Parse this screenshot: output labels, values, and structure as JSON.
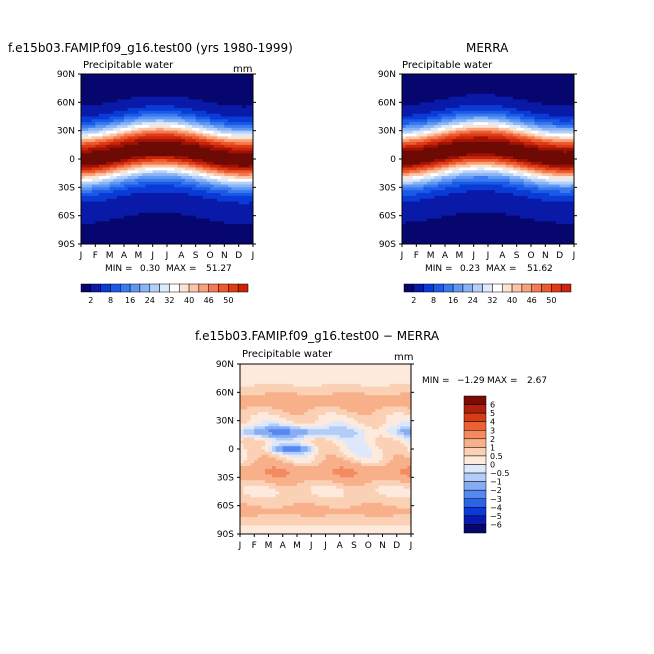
{
  "chart_data": [
    {
      "type": "heatmap",
      "title": "f.e15b03.FAMIP.f09_g16.test00 (yrs 1980-1999)",
      "subtitle": "Precipitable water",
      "units": "mm",
      "x_ticks": [
        "J",
        "F",
        "M",
        "A",
        "M",
        "J",
        "J",
        "A",
        "S",
        "O",
        "N",
        "D",
        "J"
      ],
      "y_ticks": [
        "90N",
        "60N",
        "30N",
        "0",
        "30S",
        "60S",
        "90S"
      ],
      "min_label": "MIN =",
      "min_value": "0.30",
      "max_label": "MAX =",
      "max_value": "51.27",
      "colorbar_labels": [
        "2",
        "8",
        "16",
        "24",
        "32",
        "40",
        "46",
        "50"
      ],
      "field": "climatology",
      "peak_lat": 8
    },
    {
      "type": "heatmap",
      "title": "MERRA",
      "subtitle": "Precipitable water",
      "units": "mm",
      "x_ticks": [
        "J",
        "F",
        "M",
        "A",
        "M",
        "J",
        "J",
        "A",
        "S",
        "O",
        "N",
        "D",
        "J"
      ],
      "y_ticks": [
        "90N",
        "60N",
        "30N",
        "0",
        "30S",
        "60S",
        "90S"
      ],
      "min_label": "MIN =",
      "min_value": "0.23",
      "max_label": "MAX =",
      "max_value": "51.62",
      "colorbar_labels": [
        "2",
        "8",
        "16",
        "24",
        "32",
        "40",
        "46",
        "50"
      ],
      "field": "climatology",
      "peak_lat": 9
    },
    {
      "type": "heatmap",
      "title": "f.e15b03.FAMIP.f09_g16.test00 − MERRA",
      "subtitle": "Precipitable water",
      "units": "mm",
      "x_ticks": [
        "J",
        "F",
        "M",
        "A",
        "M",
        "J",
        "J",
        "A",
        "S",
        "O",
        "N",
        "D",
        "J"
      ],
      "y_ticks": [
        "90N",
        "60N",
        "30N",
        "0",
        "30S",
        "60S",
        "90S"
      ],
      "min_label": "MIN =",
      "min_value": "−1.29",
      "max_label": "MAX =",
      "max_value": "2.67",
      "colorbar_labels": [
        "6",
        "5",
        "4",
        "3",
        "2",
        "1",
        "0.5",
        "0",
        "−0.5",
        "−1",
        "−2",
        "−3",
        "−4",
        "−5",
        "−6"
      ],
      "field": "difference"
    }
  ],
  "colors": {
    "climatology_scale": [
      "#07066f",
      "#0a1aa8",
      "#0a3bd6",
      "#1a5ae6",
      "#3a7af0",
      "#5e98f2",
      "#8ab4f5",
      "#b4d0f8",
      "#dcebfb",
      "#ffffff",
      "#fde4d2",
      "#fbc6a8",
      "#f8a27c",
      "#f47a52",
      "#ec5a2e",
      "#e03c13",
      "#c8250a",
      "#a01106",
      "#6e0a04"
    ],
    "difference_scale": [
      "#07066f",
      "#0a1ab0",
      "#0c3ad8",
      "#2a62ea",
      "#5588f0",
      "#86adf4",
      "#b4cdf8",
      "#dde9fb",
      "#fdeadc",
      "#fbd1b5",
      "#f8b08a",
      "#f38a60",
      "#ea6134",
      "#d63d15",
      "#b0200a",
      "#7a0c05"
    ]
  }
}
